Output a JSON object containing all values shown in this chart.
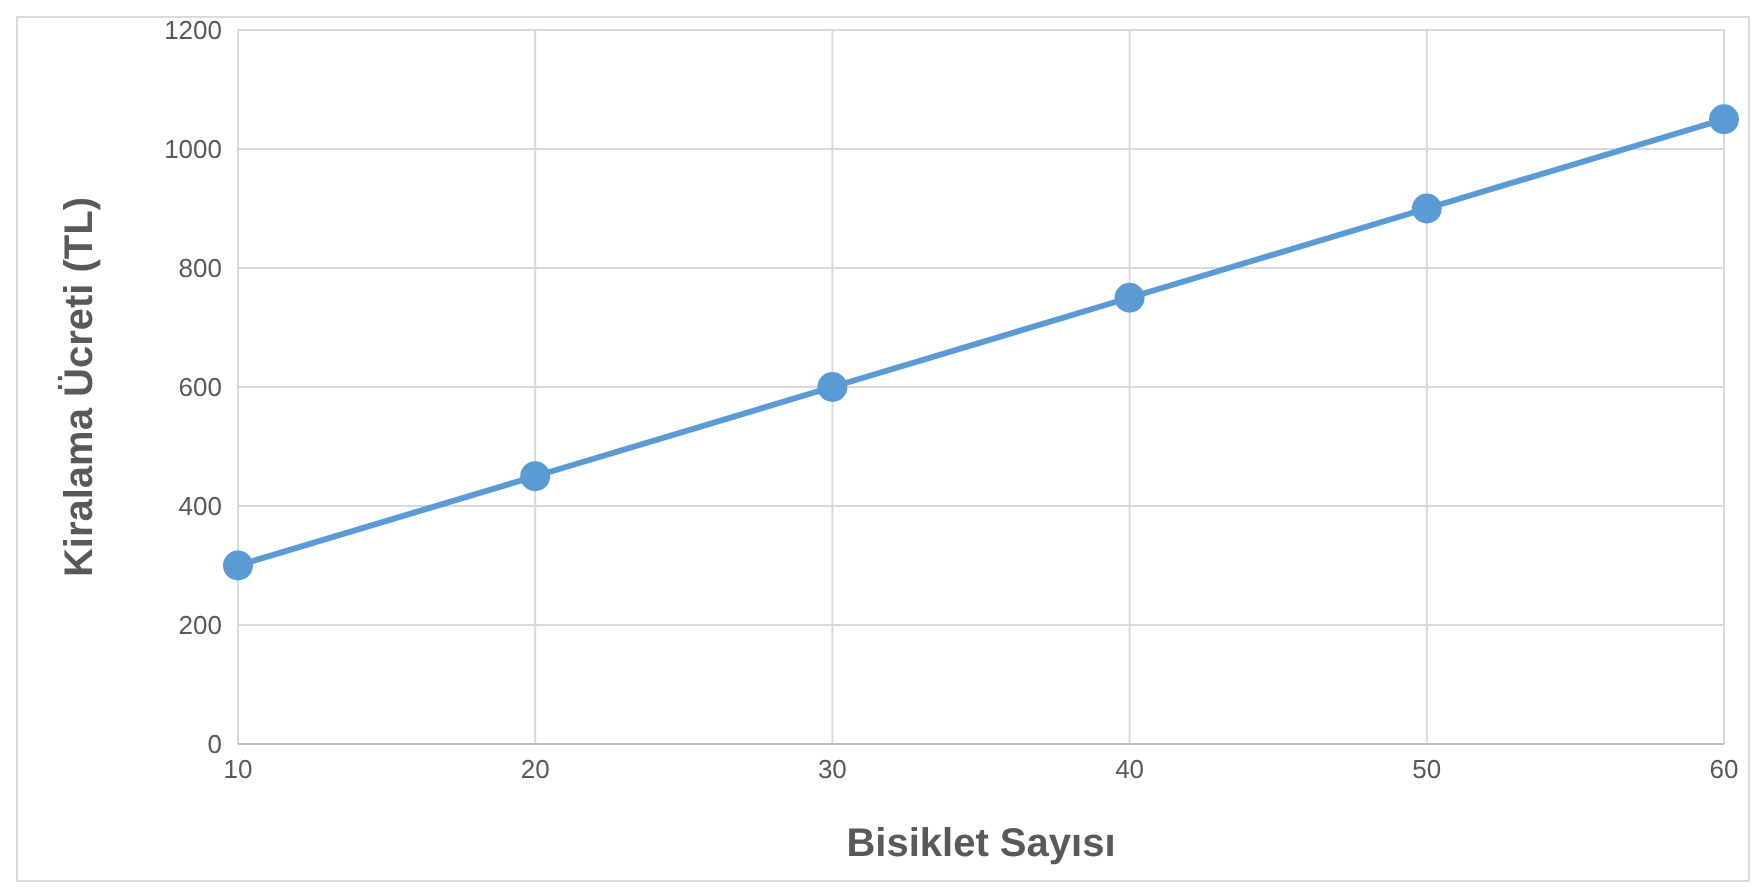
{
  "chart_data": {
    "type": "line",
    "xlabel": "Bisiklet Sayısı",
    "ylabel": "Kiralama Ücreti (TL)",
    "categories": [
      "10",
      "20",
      "30",
      "40",
      "50",
      "60"
    ],
    "series": [
      {
        "color": "#5b9bd5",
        "values": [
          300,
          450,
          600,
          750,
          900,
          1050
        ]
      }
    ],
    "ylim": [
      0,
      1200
    ],
    "yticks": [
      0,
      200,
      400,
      600,
      800,
      1000,
      1200
    ],
    "grid": true,
    "marker": "circle",
    "line_style": "solid"
  }
}
